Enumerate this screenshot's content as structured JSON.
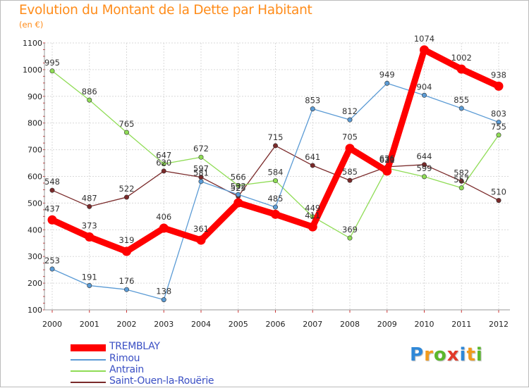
{
  "title": "Evolution du Montant de la Dette par Habitant",
  "subtitle": "(en €)",
  "logo": {
    "letters": [
      "P",
      "r",
      "o",
      "x",
      "i",
      "t",
      "i"
    ],
    "colors": [
      "#2f88d8",
      "#f29b1c",
      "#5ab82c",
      "#e23a2a",
      "#2f88d8",
      "#f29b1c",
      "#5ab82c"
    ]
  },
  "chart_data": {
    "type": "line",
    "title": "Evolution du Montant de la Dette par Habitant",
    "subtitle": "(en €)",
    "x": [
      "2000",
      "2001",
      "2002",
      "2003",
      "2004",
      "2005",
      "2006",
      "2007",
      "2008",
      "2009",
      "2010",
      "2011",
      "2012"
    ],
    "ylim": [
      100,
      1100
    ],
    "yticks": [
      "100",
      "200",
      "300",
      "400",
      "500",
      "600",
      "700",
      "800",
      "900",
      "1000",
      "1100"
    ],
    "grid": true,
    "legend": "bottom-left",
    "series": [
      {
        "name": "TREMBLAY",
        "color": "#ff0000",
        "values": [
          437,
          373,
          319,
          406,
          361,
          501,
          458,
          411,
          705,
          620,
          1074,
          1002,
          938
        ],
        "labels": [
          "437",
          "373",
          "319",
          "406",
          "361",
          "",
          "",
          "411",
          "705",
          "620",
          "1074",
          "1002",
          "938"
        ]
      },
      {
        "name": "Rimou",
        "color": "#5b9bd5",
        "values": [
          253,
          191,
          176,
          138,
          581,
          532,
          485,
          853,
          812,
          949,
          904,
          855,
          803
        ],
        "labels": [
          "253",
          "191",
          "176",
          "138",
          "581",
          "532",
          "485",
          "853",
          "812",
          "949",
          "904",
          "855",
          "803"
        ]
      },
      {
        "name": "Antrain",
        "color": "#8fdc55",
        "values": [
          995,
          886,
          765,
          647,
          672,
          566,
          584,
          449,
          369,
          631,
          599,
          557,
          755
        ],
        "labels": [
          "995",
          "886",
          "765",
          "647",
          "672",
          "566",
          "584",
          "449",
          "369",
          "631",
          "599",
          "557",
          "755"
        ]
      },
      {
        "name": "Saint-Ouen-la-Rouërie",
        "color": "#7a2a2a",
        "values": [
          548,
          487,
          522,
          620,
          597,
          525,
          715,
          641,
          585,
          636,
          644,
          582,
          510
        ],
        "labels": [
          "548",
          "487",
          "522",
          "620",
          "597",
          "525",
          "715",
          "641",
          "585",
          "636",
          "644",
          "582",
          "510"
        ]
      }
    ]
  }
}
